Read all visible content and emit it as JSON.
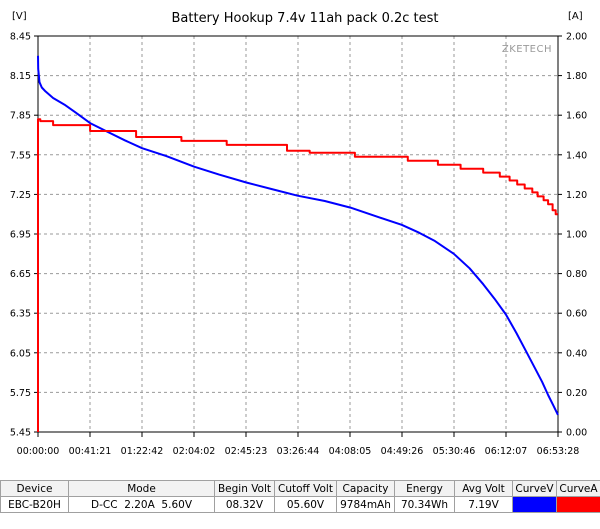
{
  "chart_data": {
    "type": "line",
    "title": "Battery Hookup 7.4v 11ah pack 0.2c test",
    "watermark": "ZKETECH",
    "left_unit": "[V]",
    "right_unit": "[A]",
    "y_left": {
      "min": 5.45,
      "max": 8.45,
      "ticks": [
        "8.45",
        "8.15",
        "7.85",
        "7.55",
        "7.25",
        "6.95",
        "6.65",
        "6.35",
        "6.05",
        "5.75",
        "5.45"
      ]
    },
    "y_right": {
      "min": 0.0,
      "max": 2.0,
      "ticks": [
        "2.00",
        "1.80",
        "1.60",
        "1.40",
        "1.20",
        "1.00",
        "0.80",
        "0.60",
        "0.40",
        "0.20",
        "0.00"
      ]
    },
    "x_ticks": [
      "00:00:00",
      "00:41:21",
      "01:22:42",
      "02:04:02",
      "02:45:23",
      "03:26:44",
      "04:08:05",
      "04:49:26",
      "05:30:46",
      "06:12:07",
      "06:53:28"
    ],
    "x_range_hours": [
      0,
      6.891
    ],
    "grid": true,
    "series": [
      {
        "name": "CurveV",
        "axis": "left",
        "color": "#0000ff",
        "x_hours": [
          0.0,
          0.003,
          0.02,
          0.05,
          0.1,
          0.2,
          0.35,
          0.5,
          0.69,
          0.9,
          1.15,
          1.38,
          1.7,
          2.07,
          2.4,
          2.76,
          3.1,
          3.44,
          3.8,
          4.14,
          4.5,
          4.82,
          5.05,
          5.25,
          5.51,
          5.72,
          5.9,
          6.05,
          6.2,
          6.34,
          6.46,
          6.58,
          6.68,
          6.76,
          6.83,
          6.89
        ],
        "values": [
          8.3,
          8.2,
          8.1,
          8.06,
          8.03,
          7.98,
          7.93,
          7.87,
          7.79,
          7.73,
          7.66,
          7.6,
          7.54,
          7.46,
          7.4,
          7.34,
          7.29,
          7.24,
          7.2,
          7.15,
          7.08,
          7.02,
          6.96,
          6.9,
          6.8,
          6.69,
          6.57,
          6.46,
          6.34,
          6.2,
          6.07,
          5.94,
          5.83,
          5.73,
          5.65,
          5.58
        ]
      },
      {
        "name": "CurveA",
        "axis": "right",
        "color": "#ff0000",
        "x_hours": [
          0.0,
          0.0,
          0.03,
          0.03,
          0.2,
          0.2,
          0.69,
          0.69,
          1.3,
          1.3,
          1.9,
          1.9,
          2.5,
          2.5,
          3.3,
          3.3,
          3.6,
          3.6,
          4.2,
          4.2,
          4.9,
          4.9,
          5.3,
          5.3,
          5.6,
          5.6,
          5.9,
          5.9,
          6.12,
          6.12,
          6.25,
          6.25,
          6.35,
          6.35,
          6.45,
          6.45,
          6.55,
          6.55,
          6.62,
          6.62,
          6.7,
          6.7,
          6.76,
          6.76,
          6.82,
          6.82,
          6.86,
          6.86,
          6.89
        ],
        "values": [
          0.0,
          1.58,
          1.58,
          1.57,
          1.57,
          1.55,
          1.55,
          1.52,
          1.52,
          1.49,
          1.49,
          1.47,
          1.47,
          1.45,
          1.45,
          1.42,
          1.42,
          1.41,
          1.41,
          1.39,
          1.39,
          1.37,
          1.37,
          1.35,
          1.35,
          1.33,
          1.33,
          1.31,
          1.31,
          1.29,
          1.29,
          1.27,
          1.27,
          1.25,
          1.25,
          1.23,
          1.23,
          1.21,
          1.21,
          1.19,
          1.19,
          1.17,
          1.17,
          1.15,
          1.15,
          1.12,
          1.12,
          1.1,
          1.1
        ]
      }
    ]
  },
  "table": {
    "headers": [
      "Device",
      "Mode",
      "Begin Volt",
      "Cutoff Volt",
      "Capacity",
      "Energy",
      "Avg Volt",
      "CurveV",
      "CurveA"
    ],
    "values": [
      "EBC-B20H",
      "D-CC  2.20A  5.60V",
      "08.32V",
      "05.60V",
      "9784mAh",
      "70.34Wh",
      "7.19V"
    ],
    "curve_colors": [
      "#0000ff",
      "#ff0000"
    ]
  }
}
